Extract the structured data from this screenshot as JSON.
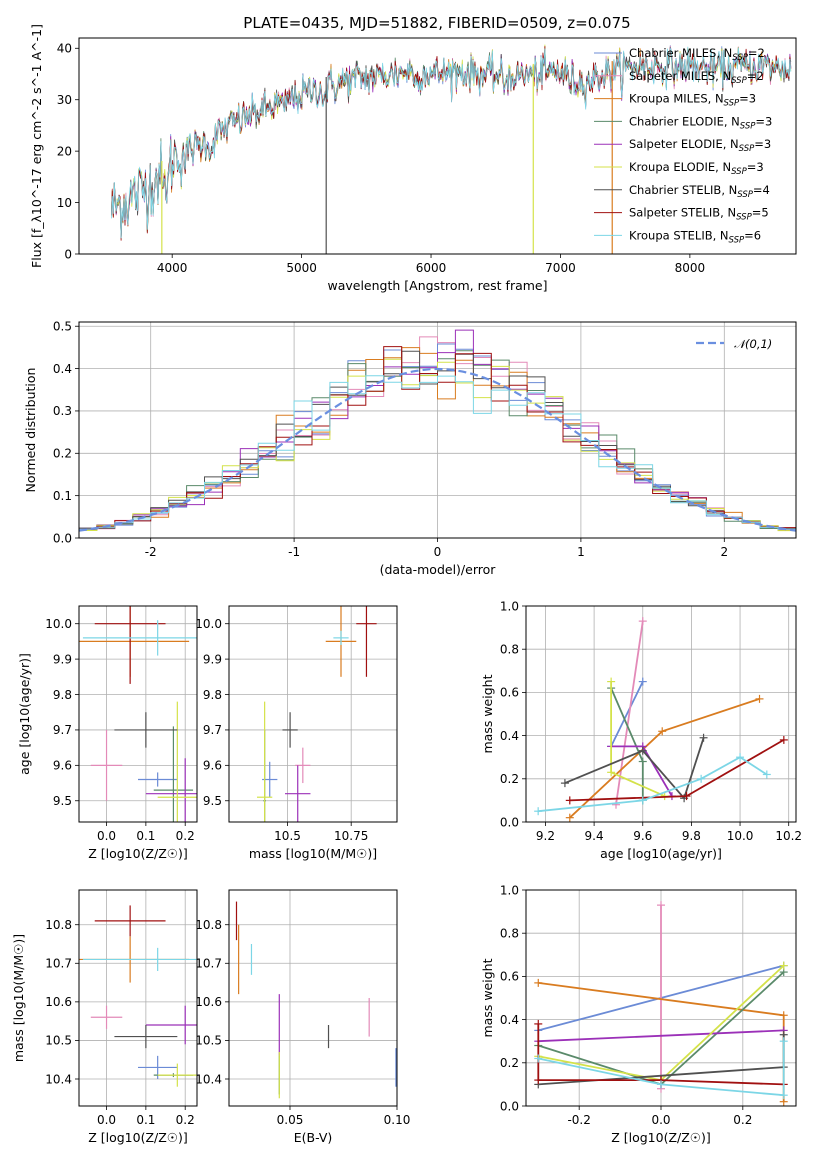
{
  "chart_data": [
    {
      "type": "line",
      "title": "PLATE=0435, MJD=51882, FIBERID=0509, z=0.075",
      "xlabel": "wavelength [Angstrom, rest frame]",
      "ylabel": "Flux [f_λ10^-17 erg cm^-2 s^-1 A^-1]",
      "xlim": [
        3280,
        8820
      ],
      "ylim": [
        0,
        42
      ],
      "xticks": [
        4000,
        5000,
        6000,
        7000,
        8000
      ],
      "yticks": [
        0,
        10,
        20,
        30,
        40
      ],
      "grid": false,
      "legend_position": "top-right",
      "spectrum_anchor_x": [
        3530,
        3700,
        3850,
        3950,
        4050,
        4200,
        4300,
        4450,
        4600,
        4800,
        5000,
        5200,
        5400,
        5600,
        5800,
        6000,
        6200,
        6400,
        6600,
        6800,
        7000,
        7100,
        7200,
        7400,
        7600,
        7800,
        8000,
        8200,
        8400,
        8600,
        8780
      ],
      "spectrum_anchor_y": [
        9,
        11,
        14,
        17,
        19.5,
        21,
        22.5,
        25,
        27,
        29,
        31,
        32.5,
        34,
        34.5,
        35.5,
        35,
        35.5,
        35,
        34.5,
        35,
        35.5,
        33.5,
        33.5,
        35.5,
        36.5,
        36.5,
        36.5,
        36,
        36.5,
        36.5,
        36
      ],
      "series": [
        {
          "name": "Chabrier MILES",
          "nssp": "2",
          "color": "#6b8bd6"
        },
        {
          "name": "Salpeter MILES",
          "nssp": "2",
          "color": "#e38ab8"
        },
        {
          "name": "Kroupa MILES",
          "nssp": "3",
          "color": "#d97c20"
        },
        {
          "name": "Chabrier ELODIE",
          "nssp": "3",
          "color": "#5a8a6a"
        },
        {
          "name": "Salpeter ELODIE",
          "nssp": "3",
          "color": "#9b30b8"
        },
        {
          "name": "Kroupa ELODIE",
          "nssp": "3",
          "color": "#d4e24a"
        },
        {
          "name": "Chabrier STELIB",
          "nssp": "4",
          "color": "#505050"
        },
        {
          "name": "Salpeter STELIB",
          "nssp": "5",
          "color": "#a01010"
        },
        {
          "name": "Kroupa STELIB",
          "nssp": "6",
          "color": "#7cd6e6"
        }
      ],
      "dropouts": [
        {
          "x": 3920,
          "color": "#d4e24a"
        },
        {
          "x": 5190,
          "color": "#505050"
        },
        {
          "x": 6790,
          "color": "#d4e24a"
        },
        {
          "x": 7400,
          "color": "#d97c20"
        }
      ]
    },
    {
      "type": "histogram",
      "xlabel": "(data-model)/error",
      "ylabel": "Normed distribution",
      "xlim": [
        -2.5,
        2.5
      ],
      "ylim": [
        0,
        0.51
      ],
      "xticks": [
        -2,
        -1,
        0,
        1,
        2
      ],
      "yticks": [
        0.0,
        0.1,
        0.2,
        0.3,
        0.4,
        0.5
      ],
      "grid": true,
      "legend_position": "top-right",
      "reference": {
        "name": "𝒩(0,1)",
        "color": "#6a8fe0",
        "style": "dashed"
      },
      "bin_width": 0.125,
      "bin_start": -2.5
    },
    {
      "type": "errorbar",
      "xlabel": "Z [log10(Z/Z☉)]",
      "ylabel": "age [log10(age/yr)]",
      "xlim": [
        -0.07,
        0.23
      ],
      "ylim": [
        9.44,
        10.05
      ],
      "xticks": [
        0.0,
        0.1,
        0.2
      ],
      "yticks": [
        9.5,
        9.6,
        9.7,
        9.8,
        9.9,
        10.0
      ],
      "grid": true,
      "points": [
        {
          "x": 0.13,
          "xerr": 0.05,
          "y": 9.56,
          "yerr": 0.02,
          "color": "#6b8bd6"
        },
        {
          "x": -0.0,
          "xerr": 0.04,
          "y": 9.6,
          "yerr": 0.1,
          "color": "#e38ab8"
        },
        {
          "x": 0.06,
          "xerr": 0.15,
          "y": 9.95,
          "yerr": 0.1,
          "color": "#d97c20"
        },
        {
          "x": 0.17,
          "xerr": 0.05,
          "y": 9.53,
          "yerr": 0.18,
          "color": "#5a8a6a"
        },
        {
          "x": 0.2,
          "xerr": 0.1,
          "y": 9.52,
          "yerr": 0.1,
          "color": "#9b30b8"
        },
        {
          "x": 0.18,
          "xerr": 0.05,
          "y": 9.51,
          "yerr": 0.27,
          "color": "#d4e24a"
        },
        {
          "x": 0.1,
          "xerr": 0.08,
          "y": 9.7,
          "yerr": 0.05,
          "color": "#505050"
        },
        {
          "x": 0.06,
          "xerr": 0.09,
          "y": 10.0,
          "yerr": 0.17,
          "color": "#a01010"
        },
        {
          "x": 0.13,
          "xerr": 0.19,
          "y": 9.96,
          "yerr": 0.05,
          "color": "#7cd6e6"
        }
      ]
    },
    {
      "type": "errorbar",
      "xlabel": "mass [log10(M/M☉)]",
      "ylabel": "",
      "xlim": [
        10.27,
        10.93
      ],
      "ylim": [
        9.44,
        10.05
      ],
      "xticks": [
        10.5,
        10.75
      ],
      "yticks": [
        9.5,
        9.6,
        9.7,
        9.8,
        9.9,
        10.0
      ],
      "grid": true,
      "points": [
        {
          "x": 10.43,
          "xerr": 0.03,
          "y": 9.56,
          "yerr": 0.05,
          "color": "#6b8bd6"
        },
        {
          "x": 10.56,
          "xerr": 0.03,
          "y": 9.6,
          "yerr": 0.05,
          "color": "#e38ab8"
        },
        {
          "x": 10.71,
          "xerr": 0.06,
          "y": 9.95,
          "yerr": 0.1,
          "color": "#d97c20"
        },
        {
          "x": 10.41,
          "xerr": 0.005,
          "y": 9.5,
          "yerr": 0.2,
          "color": "#5a8a6a"
        },
        {
          "x": 10.54,
          "xerr": 0.05,
          "y": 9.52,
          "yerr": 0.08,
          "color": "#9b30b8"
        },
        {
          "x": 10.41,
          "xerr": 0.03,
          "y": 9.51,
          "yerr": 0.27,
          "color": "#d4e24a"
        },
        {
          "x": 10.51,
          "xerr": 0.03,
          "y": 9.7,
          "yerr": 0.05,
          "color": "#505050"
        },
        {
          "x": 10.81,
          "xerr": 0.04,
          "y": 10.0,
          "yerr": 0.15,
          "color": "#a01010"
        },
        {
          "x": 10.71,
          "xerr": 0.03,
          "y": 9.96,
          "yerr": 0.02,
          "color": "#7cd6e6"
        }
      ]
    },
    {
      "type": "line",
      "xlabel": "age [log10(age/yr)]",
      "ylabel": "mass weight",
      "xlim": [
        9.12,
        10.23
      ],
      "ylim": [
        0,
        1.0
      ],
      "xticks": [
        9.2,
        9.4,
        9.6,
        9.8,
        10.0,
        10.2
      ],
      "yticks": [
        0.0,
        0.2,
        0.4,
        0.6,
        0.8,
        1.0
      ],
      "grid": true,
      "series": [
        {
          "color": "#6b8bd6",
          "x": [
            9.47,
            9.6
          ],
          "y": [
            0.35,
            0.65
          ]
        },
        {
          "color": "#e38ab8",
          "x": [
            9.49,
            9.6
          ],
          "y": [
            0.08,
            0.93
          ]
        },
        {
          "color": "#d97c20",
          "x": [
            9.3,
            9.68,
            10.08
          ],
          "y": [
            0.02,
            0.42,
            0.57
          ]
        },
        {
          "color": "#5a8a6a",
          "x": [
            9.47,
            9.6,
            9.6
          ],
          "y": [
            0.62,
            0.28,
            0.1
          ]
        },
        {
          "color": "#9b30b8",
          "x": [
            9.47,
            9.6,
            9.72
          ],
          "y": [
            0.35,
            0.35,
            0.12
          ]
        },
        {
          "color": "#d4e24a",
          "x": [
            9.47,
            9.47,
            9.69
          ],
          "y": [
            0.65,
            0.23,
            0.12
          ]
        },
        {
          "color": "#505050",
          "x": [
            9.28,
            9.6,
            9.77,
            9.85
          ],
          "y": [
            0.18,
            0.33,
            0.11,
            0.39
          ]
        },
        {
          "color": "#a01010",
          "x": [
            9.3,
            9.78,
            10.18
          ],
          "y": [
            0.1,
            0.12,
            0.38
          ]
        },
        {
          "color": "#7cd6e6",
          "x": [
            9.17,
            9.6,
            9.84,
            10.0,
            10.11
          ],
          "y": [
            0.05,
            0.1,
            0.2,
            0.3,
            0.22
          ]
        }
      ]
    },
    {
      "type": "errorbar",
      "xlabel": "Z [log10(Z/Z☉)]",
      "ylabel": "mass [log10(M/M☉)]",
      "xlim": [
        -0.07,
        0.23
      ],
      "ylim": [
        10.33,
        10.89
      ],
      "xticks": [
        0.0,
        0.1,
        0.2
      ],
      "yticks": [
        10.4,
        10.5,
        10.6,
        10.7,
        10.8
      ],
      "grid": true,
      "points": [
        {
          "x": 0.13,
          "xerr": 0.05,
          "y": 10.43,
          "yerr": 0.03,
          "color": "#6b8bd6"
        },
        {
          "x": -0.0,
          "xerr": 0.04,
          "y": 10.56,
          "yerr": 0.03,
          "color": "#e38ab8"
        },
        {
          "x": 0.06,
          "xerr": 0.15,
          "y": 10.71,
          "yerr": 0.06,
          "color": "#d97c20"
        },
        {
          "x": 0.17,
          "xerr": 0.05,
          "y": 10.41,
          "yerr": 0.005,
          "color": "#5a8a6a"
        },
        {
          "x": 0.2,
          "xerr": 0.1,
          "y": 10.54,
          "yerr": 0.05,
          "color": "#9b30b8"
        },
        {
          "x": 0.18,
          "xerr": 0.05,
          "y": 10.41,
          "yerr": 0.03,
          "color": "#d4e24a"
        },
        {
          "x": 0.1,
          "xerr": 0.08,
          "y": 10.51,
          "yerr": 0.03,
          "color": "#505050"
        },
        {
          "x": 0.06,
          "xerr": 0.09,
          "y": 10.81,
          "yerr": 0.04,
          "color": "#a01010"
        },
        {
          "x": 0.13,
          "xerr": 0.19,
          "y": 10.71,
          "yerr": 0.03,
          "color": "#7cd6e6"
        }
      ]
    },
    {
      "type": "errorbar",
      "xlabel": "E(B-V)",
      "ylabel": "",
      "xlim": [
        0.0215,
        0.1
      ],
      "ylim": [
        10.33,
        10.89
      ],
      "xticks": [
        0.05,
        0.1
      ],
      "yticks": [
        10.4,
        10.5,
        10.6,
        10.7,
        10.8
      ],
      "grid": true,
      "points": [
        {
          "x": 0.0995,
          "xerr": 0.0,
          "y": 10.43,
          "yerr": 0.05,
          "color": "#6b8bd6"
        },
        {
          "x": 0.087,
          "xerr": 0.0,
          "y": 10.56,
          "yerr": 0.05,
          "color": "#e38ab8"
        },
        {
          "x": 0.026,
          "xerr": 0.0,
          "y": 10.71,
          "yerr": 0.09,
          "color": "#d97c20"
        },
        {
          "x": 0.045,
          "xerr": 0.0,
          "y": 10.41,
          "yerr": 0.05,
          "color": "#5a8a6a"
        },
        {
          "x": 0.045,
          "xerr": 0.0,
          "y": 10.54,
          "yerr": 0.08,
          "color": "#9b30b8"
        },
        {
          "x": 0.045,
          "xerr": 0.0,
          "y": 10.41,
          "yerr": 0.06,
          "color": "#d4e24a"
        },
        {
          "x": 0.068,
          "xerr": 0.0,
          "y": 10.51,
          "yerr": 0.03,
          "color": "#505050"
        },
        {
          "x": 0.025,
          "xerr": 0.0,
          "y": 10.81,
          "yerr": 0.05,
          "color": "#a01010"
        },
        {
          "x": 0.032,
          "xerr": 0.0,
          "y": 10.71,
          "yerr": 0.04,
          "color": "#7cd6e6"
        }
      ]
    },
    {
      "type": "line",
      "xlabel": "Z [log10(Z/Z☉)]",
      "ylabel": "mass weight",
      "xlim": [
        -0.33,
        0.33
      ],
      "ylim": [
        0,
        1.0
      ],
      "xticks": [
        -0.2,
        0.0,
        0.2
      ],
      "yticks": [
        0.0,
        0.2,
        0.4,
        0.6,
        0.8,
        1.0
      ],
      "grid": true,
      "series": [
        {
          "color": "#6b8bd6",
          "x": [
            -0.3,
            0.3
          ],
          "y": [
            0.35,
            0.65
          ]
        },
        {
          "color": "#e38ab8",
          "x": [
            0.0,
            0.0
          ],
          "y": [
            0.08,
            0.93
          ]
        },
        {
          "color": "#d97c20",
          "x": [
            -0.3,
            0.3,
            0.3
          ],
          "y": [
            0.57,
            0.42,
            0.02
          ]
        },
        {
          "color": "#5a8a6a",
          "x": [
            -0.3,
            0.0,
            0.3
          ],
          "y": [
            0.28,
            0.1,
            0.62
          ]
        },
        {
          "color": "#9b30b8",
          "x": [
            -0.3,
            0.3
          ],
          "y": [
            0.3,
            0.35
          ]
        },
        {
          "color": "#d4e24a",
          "x": [
            -0.3,
            0.0,
            0.3
          ],
          "y": [
            0.23,
            0.12,
            0.65
          ]
        },
        {
          "color": "#505050",
          "x": [
            -0.3,
            0.3,
            0.3
          ],
          "y": [
            0.1,
            0.18,
            0.33
          ]
        },
        {
          "color": "#a01010",
          "x": [
            -0.3,
            -0.3,
            0.0,
            0.3
          ],
          "y": [
            0.38,
            0.12,
            0.12,
            0.1
          ]
        },
        {
          "color": "#7cd6e6",
          "x": [
            -0.3,
            0.0,
            0.3,
            0.3
          ],
          "y": [
            0.22,
            0.1,
            0.05,
            0.3
          ]
        }
      ]
    }
  ]
}
